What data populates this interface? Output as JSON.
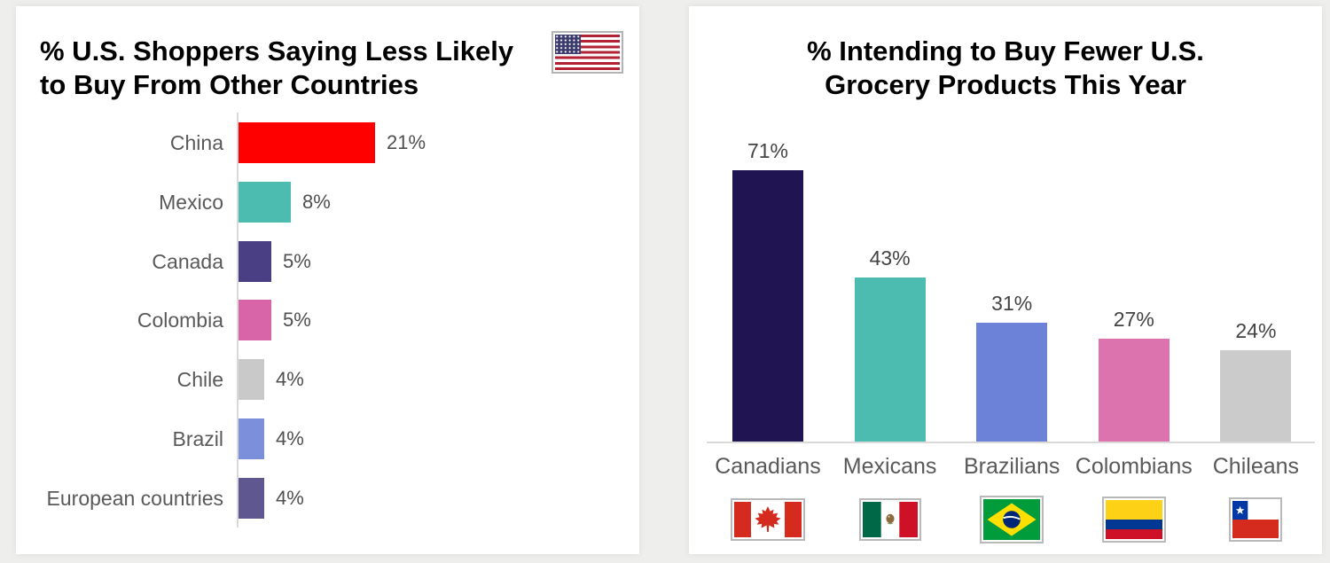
{
  "left_panel": {
    "title_line1": "% U.S. Shoppers Saying Less Likely",
    "title_line2": "to Buy From Other Countries",
    "flag_icon": "us-flag-icon"
  },
  "right_panel": {
    "title_line1": "% Intending to Buy Fewer U.S.",
    "title_line2": "Grocery Products This Year"
  },
  "chart_data": [
    {
      "type": "bar",
      "orientation": "horizontal",
      "title": "% U.S. Shoppers Saying Less Likely to Buy From Other Countries",
      "categories": [
        "China",
        "Mexico",
        "Canada",
        "Colombia",
        "Chile",
        "Brazil",
        "European countries"
      ],
      "values": [
        21,
        8,
        5,
        5,
        4,
        4,
        4
      ],
      "value_labels": [
        "21%",
        "8%",
        "5%",
        "5%",
        "4%",
        "4%",
        "4%"
      ],
      "bar_colors": [
        "#ff0000",
        "#4cbbb0",
        "#4a3f85",
        "#d765a8",
        "#c9c9c9",
        "#7b8fdb",
        "#5f578f"
      ],
      "xlabel": "",
      "ylabel": "",
      "value_axis_labels_visible": false,
      "grid": false,
      "legend": "none"
    },
    {
      "type": "bar",
      "orientation": "vertical",
      "title": "% Intending to Buy Fewer U.S. Grocery Products This Year",
      "categories": [
        "Canadians",
        "Mexicans",
        "Brazilians",
        "Colombians",
        "Chileans"
      ],
      "values": [
        71,
        43,
        31,
        27,
        24
      ],
      "value_labels": [
        "71%",
        "43%",
        "31%",
        "27%",
        "24%"
      ],
      "bar_colors": [
        "#211452",
        "#4cbbb0",
        "#6b82d8",
        "#dc73ae",
        "#cbcbcb"
      ],
      "flag_icons": [
        "canada-flag-icon",
        "mexico-flag-icon",
        "brazil-flag-icon",
        "colombia-flag-icon",
        "chile-flag-icon"
      ],
      "xlabel": "",
      "ylabel": "",
      "value_axis_labels_visible": false,
      "grid": false,
      "legend": "none"
    }
  ],
  "colors": {
    "page_background": "#eeeeec",
    "card_background": "#ffffff",
    "axis_line": "#d9d9d9",
    "category_label": "#595959",
    "value_label": "#4f4f4f",
    "title_text": "#000000",
    "flag_border": "#b9b9b9"
  }
}
